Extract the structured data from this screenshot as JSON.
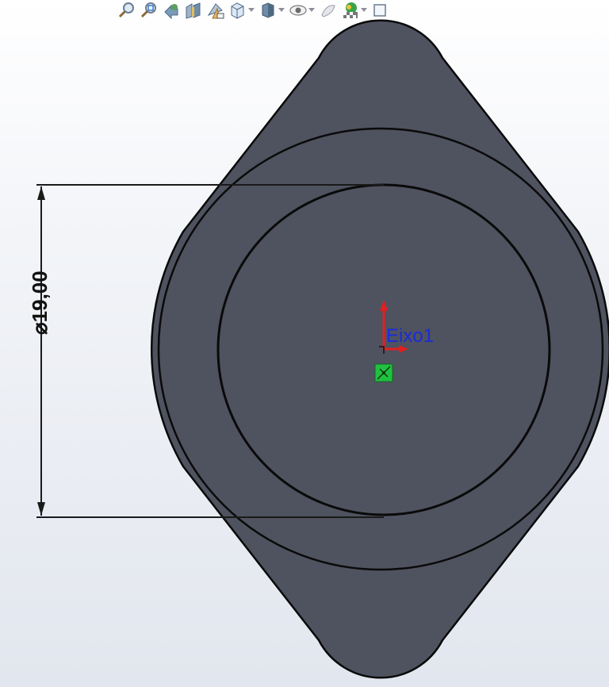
{
  "toolbar": {
    "items": [
      {
        "icon": "zoom-to-fit-icon"
      },
      {
        "icon": "zoom-to-area-icon"
      },
      {
        "icon": "previous-view-icon"
      },
      {
        "icon": "section-view-icon"
      },
      {
        "icon": "dynamic-annotation-views-icon"
      },
      {
        "icon": "view-orientation-icon",
        "dropdown": true
      },
      {
        "icon": "display-style-icon",
        "dropdown": true
      },
      {
        "icon": "hide-show-items-icon",
        "dropdown": true
      },
      {
        "icon": "edit-appearance-icon"
      },
      {
        "icon": "apply-scene-icon",
        "dropdown": true
      },
      {
        "icon": "view-settings-icon"
      }
    ]
  },
  "model": {
    "body_color": "#4f525f",
    "outline_color": "#0a0a0a"
  },
  "dimension": {
    "text": "⌀19,00",
    "value": 19.0
  },
  "axis": {
    "label": "Eixo1",
    "label_color": "#1a2bd8",
    "arrow_color": "#e02020",
    "origin_color": "#22c040"
  }
}
